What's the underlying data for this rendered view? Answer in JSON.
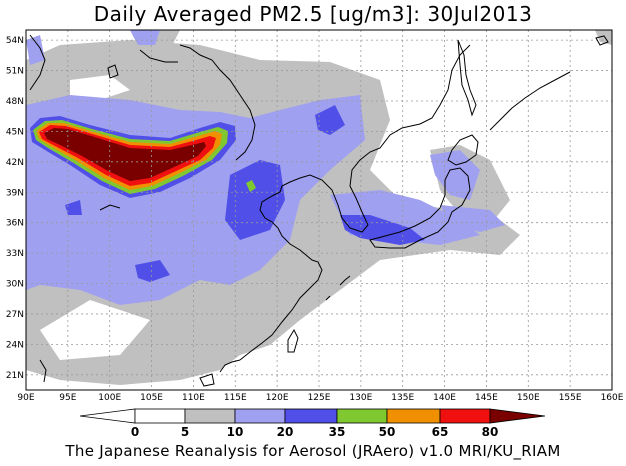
{
  "title": "Daily Averaged PM2.5 [ug/m3]: 30Jul2013",
  "footer": "The Japanese Reanalysis for Aerosol (JRAero) v1.0 MRI/KU_RIAM",
  "lon_ticks": [
    "90E",
    "95E",
    "100E",
    "105E",
    "110E",
    "115E",
    "120E",
    "125E",
    "130E",
    "135E",
    "140E",
    "145E",
    "150E",
    "155E",
    "160E"
  ],
  "lat_ticks": [
    "21N",
    "24N",
    "27N",
    "30N",
    "33N",
    "36N",
    "39N",
    "42N",
    "45N",
    "48N",
    "51N",
    "54N"
  ],
  "colorbar": {
    "labels": [
      "0",
      "5",
      "10",
      "20",
      "35",
      "50",
      "65",
      "80"
    ],
    "colors": [
      "#ffffff",
      "#c0c0c0",
      "#a0a0f0",
      "#5050e8",
      "#80c830",
      "#f09000",
      "#f01010",
      "#7a0000"
    ]
  }
}
